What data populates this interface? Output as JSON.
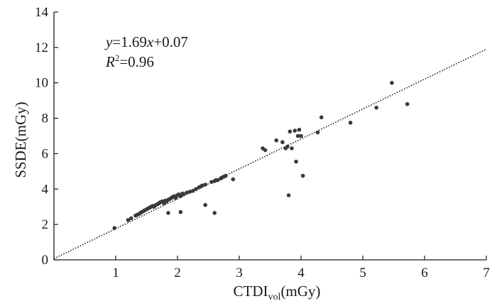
{
  "chart_data": {
    "type": "scatter",
    "title": "",
    "xlabel_main": "CTDI",
    "xlabel_sub": "vol",
    "xlabel_unit": "(mGy)",
    "ylabel": "SSDE(mGy)",
    "xlim": [
      0,
      7
    ],
    "ylim": [
      0,
      14
    ],
    "x_ticks": [
      1,
      2,
      3,
      4,
      5,
      6,
      7
    ],
    "y_ticks": [
      0,
      2,
      4,
      6,
      8,
      10,
      12,
      14
    ],
    "annotation": {
      "equation": {
        "y": "y",
        "eq": "=1.69",
        "x": "x",
        "rest": "+0.07"
      },
      "r2": {
        "R": "R",
        "sup": "2",
        "rest": "=0.96"
      }
    },
    "fit": {
      "slope": 1.69,
      "intercept": 0.07
    },
    "grid": false,
    "series": [
      {
        "x": [
          0.98,
          1.2,
          1.25,
          1.32,
          1.35,
          1.38,
          1.4,
          1.42,
          1.45,
          1.47,
          1.5,
          1.52,
          1.55,
          1.57,
          1.6,
          1.62,
          1.65,
          1.68,
          1.7,
          1.72,
          1.75,
          1.78,
          1.8,
          1.82,
          1.85,
          1.88,
          1.9,
          1.92,
          1.95,
          1.97,
          2.0,
          2.02,
          2.05,
          2.08,
          2.1,
          2.15,
          2.2,
          2.25,
          2.3,
          2.35,
          2.38,
          2.4,
          2.45,
          2.55,
          2.6,
          2.62,
          2.65,
          2.7,
          2.72,
          2.75,
          2.78,
          2.9,
          1.85,
          2.05,
          2.45,
          2.6,
          3.38,
          3.42,
          3.6,
          3.7,
          3.75,
          3.78,
          3.82,
          3.85,
          3.9,
          3.95,
          3.97,
          4.0,
          4.27,
          4.33,
          4.8,
          5.22,
          5.47,
          5.72,
          3.8,
          3.92,
          4.03
        ],
        "y": [
          1.8,
          2.25,
          2.35,
          2.5,
          2.55,
          2.6,
          2.65,
          2.7,
          2.75,
          2.8,
          2.85,
          2.9,
          2.95,
          3.0,
          3.05,
          3.0,
          3.1,
          3.15,
          3.2,
          3.25,
          3.3,
          3.2,
          3.35,
          3.3,
          3.4,
          3.45,
          3.5,
          3.55,
          3.6,
          3.5,
          3.65,
          3.7,
          3.6,
          3.75,
          3.7,
          3.8,
          3.85,
          3.9,
          4.0,
          4.1,
          4.15,
          4.2,
          4.25,
          4.4,
          4.45,
          4.5,
          4.5,
          4.6,
          4.65,
          4.7,
          4.75,
          4.55,
          2.65,
          2.7,
          3.1,
          2.65,
          6.3,
          6.2,
          6.75,
          6.65,
          6.3,
          6.4,
          7.25,
          6.3,
          7.3,
          7.0,
          7.35,
          7.0,
          7.2,
          8.05,
          7.75,
          8.6,
          10.0,
          8.8,
          3.65,
          5.55,
          4.75
        ]
      }
    ]
  }
}
